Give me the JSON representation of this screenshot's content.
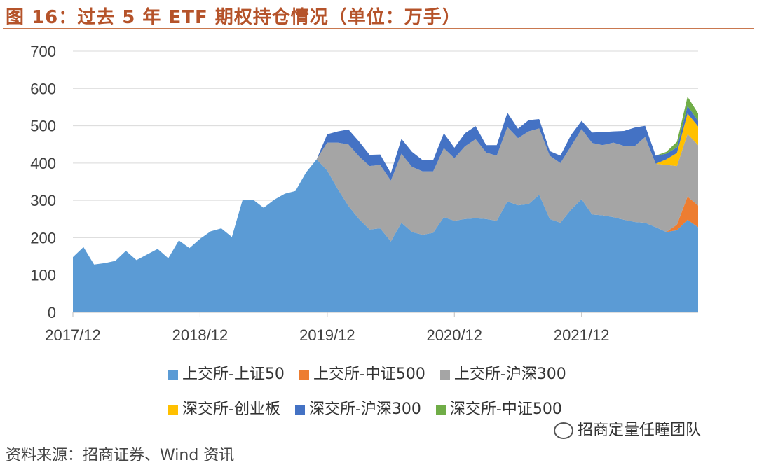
{
  "figure": {
    "title": "图 16：过去 5 年 ETF 期权持仓情况（单位：万手）",
    "source": "资料来源：招商证券、Wind 资讯",
    "watermark": "招商定量任瞳团队"
  },
  "chart_data": {
    "type": "area",
    "stacked": true,
    "title": "",
    "xlabel": "",
    "ylabel": "",
    "ylim": [
      0,
      700
    ],
    "yticks": [
      0,
      100,
      200,
      300,
      400,
      500,
      600,
      700
    ],
    "xtick_labels": [
      "2017/12",
      "2018/12",
      "2019/12",
      "2020/12",
      "2021/12"
    ],
    "grid": "horizontal",
    "legend_position": "bottom",
    "x": [
      "2017/12",
      "2018/01",
      "2018/02",
      "2018/03",
      "2018/04",
      "2018/05",
      "2018/06",
      "2018/07",
      "2018/08",
      "2018/09",
      "2018/10",
      "2018/11",
      "2018/12",
      "2019/01",
      "2019/02",
      "2019/03",
      "2019/04",
      "2019/05",
      "2019/06",
      "2019/07",
      "2019/08",
      "2019/09",
      "2019/10",
      "2019/11",
      "2019/12",
      "2020/01",
      "2020/02",
      "2020/03",
      "2020/04",
      "2020/05",
      "2020/06",
      "2020/07",
      "2020/08",
      "2020/09",
      "2020/10",
      "2020/11",
      "2020/12",
      "2021/01",
      "2021/02",
      "2021/03",
      "2021/04",
      "2021/05",
      "2021/06",
      "2021/07",
      "2021/08",
      "2021/09",
      "2021/10",
      "2021/11",
      "2021/12",
      "2022/01",
      "2022/02",
      "2022/03",
      "2022/04",
      "2022/05",
      "2022/06",
      "2022/07",
      "2022/08",
      "2022/09",
      "2022/10",
      "2022/11"
    ],
    "series": [
      {
        "name": "上交所-上证50",
        "color": "#5b9bd5",
        "values": [
          148,
          175,
          128,
          132,
          138,
          165,
          140,
          155,
          170,
          145,
          193,
          172,
          197,
          217,
          225,
          202,
          300,
          302,
          280,
          302,
          318,
          325,
          375,
          410,
          380,
          330,
          285,
          250,
          222,
          225,
          190,
          240,
          215,
          208,
          213,
          255,
          245,
          250,
          252,
          250,
          245,
          297,
          287,
          290,
          315,
          250,
          240,
          275,
          303,
          262,
          260,
          255,
          248,
          242,
          240,
          228,
          215,
          220,
          248,
          228
        ]
      },
      {
        "name": "上交所-中证500",
        "color": "#ed7d31",
        "values": [
          0,
          0,
          0,
          0,
          0,
          0,
          0,
          0,
          0,
          0,
          0,
          0,
          0,
          0,
          0,
          0,
          0,
          0,
          0,
          0,
          0,
          0,
          0,
          0,
          0,
          0,
          0,
          0,
          0,
          0,
          0,
          0,
          0,
          0,
          0,
          0,
          0,
          0,
          0,
          0,
          0,
          0,
          0,
          0,
          0,
          0,
          0,
          0,
          0,
          0,
          0,
          0,
          0,
          0,
          0,
          0,
          0,
          15,
          62,
          58
        ]
      },
      {
        "name": "上交所-沪深300",
        "color": "#a5a5a5",
        "values": [
          0,
          0,
          0,
          0,
          0,
          0,
          0,
          0,
          0,
          0,
          0,
          0,
          0,
          0,
          0,
          0,
          0,
          0,
          0,
          0,
          0,
          0,
          0,
          0,
          75,
          125,
          165,
          168,
          170,
          170,
          163,
          185,
          175,
          170,
          165,
          185,
          168,
          195,
          212,
          178,
          175,
          200,
          180,
          195,
          178,
          170,
          160,
          170,
          188,
          192,
          188,
          200,
          198,
          203,
          230,
          170,
          180,
          157,
          168,
          162
        ]
      },
      {
        "name": "深交所-创业板",
        "color": "#ffc000",
        "values": [
          0,
          0,
          0,
          0,
          0,
          0,
          0,
          0,
          0,
          0,
          0,
          0,
          0,
          0,
          0,
          0,
          0,
          0,
          0,
          0,
          0,
          0,
          0,
          0,
          0,
          0,
          0,
          0,
          0,
          0,
          0,
          0,
          0,
          0,
          0,
          0,
          0,
          0,
          0,
          0,
          0,
          0,
          0,
          0,
          0,
          0,
          0,
          0,
          0,
          0,
          0,
          0,
          0,
          0,
          0,
          0,
          15,
          35,
          55,
          50
        ]
      },
      {
        "name": "深交所-沪深300",
        "color": "#4472c4",
        "values": [
          0,
          0,
          0,
          0,
          0,
          0,
          0,
          0,
          0,
          0,
          0,
          0,
          0,
          0,
          0,
          0,
          0,
          0,
          0,
          0,
          0,
          0,
          0,
          0,
          22,
          30,
          40,
          40,
          30,
          28,
          20,
          40,
          40,
          30,
          30,
          40,
          28,
          35,
          35,
          20,
          28,
          38,
          25,
          30,
          25,
          12,
          20,
          30,
          22,
          28,
          35,
          30,
          40,
          50,
          30,
          22,
          15,
          15,
          20,
          15
        ]
      },
      {
        "name": "深交所-中证500",
        "color": "#70ad47",
        "values": [
          0,
          0,
          0,
          0,
          0,
          0,
          0,
          0,
          0,
          0,
          0,
          0,
          0,
          0,
          0,
          0,
          0,
          0,
          0,
          0,
          0,
          0,
          0,
          0,
          0,
          0,
          0,
          0,
          0,
          0,
          0,
          0,
          0,
          0,
          0,
          0,
          0,
          0,
          0,
          0,
          0,
          0,
          0,
          0,
          0,
          0,
          0,
          0,
          0,
          0,
          0,
          0,
          0,
          0,
          0,
          0,
          5,
          15,
          25,
          20
        ]
      }
    ]
  }
}
